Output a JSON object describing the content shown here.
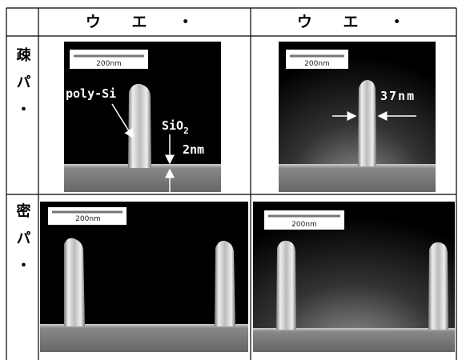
{
  "table": {
    "header": [
      "ウ エ ・",
      "ウ エ ・"
    ],
    "rows": [
      {
        "label": "疎パ・",
        "images": [
          {
            "scale": "200nm",
            "material": "poly-Si",
            "oxide": [
              "SiO",
              "2"
            ],
            "thickness": "2nm"
          },
          {
            "scale": "200nm",
            "width": "37nm"
          }
        ]
      },
      {
        "label": "密パ・",
        "images": [
          {
            "scale": "200nm"
          },
          {
            "scale": "200nm"
          }
        ]
      }
    ]
  }
}
